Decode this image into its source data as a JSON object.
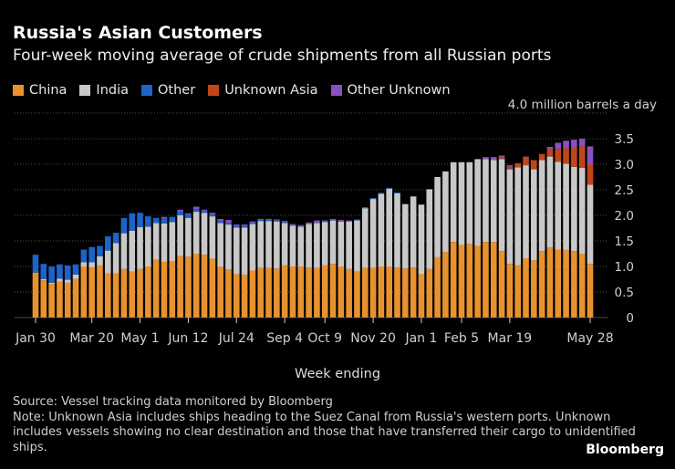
{
  "title": "Russia's Asian Customers",
  "subtitle": "Four-week moving average of crude shipments from all Russian ports",
  "legend": [
    {
      "label": "China",
      "color": "#e8922e"
    },
    {
      "label": "India",
      "color": "#c8c8c8"
    },
    {
      "label": "Other",
      "color": "#1e63c8"
    },
    {
      "label": "Unknown Asia",
      "color": "#c0461a"
    },
    {
      "label": "Other Unknown",
      "color": "#8b4fc2"
    }
  ],
  "source": "Source: Vessel tracking data monitored by Bloomberg",
  "note": "Note: Unknown Asia includes ships heading to the Suez Canal from Russia's western ports. Unknown includes vessels showing no clear destination and those that have transferred their cargo to unidentified ships.",
  "brand": "Bloomberg",
  "chart_data": {
    "type": "bar",
    "stacked": true,
    "title": "Russia's Asian Customers",
    "unit_label": "4.0 million barrels a day",
    "xlabel": "Week ending",
    "ylabel": "",
    "ylim": [
      0,
      4.0
    ],
    "yticks": [
      "0",
      "0.5",
      "1.0",
      "1.5",
      "2.0",
      "2.5",
      "3.0",
      "3.5"
    ],
    "ytick_values": [
      0,
      0.5,
      1.0,
      1.5,
      2.0,
      2.5,
      3.0,
      3.5
    ],
    "xtick_labels": [
      "Jan 30",
      "Mar 20",
      "May 1",
      "Jun 12",
      "Jul 24",
      "Sep 4",
      "Oct 9",
      "Nov 20",
      "Jan 1",
      "Feb 5",
      "Mar 19",
      "May 28"
    ],
    "xtick_indices": [
      0,
      7,
      13,
      19,
      25,
      31,
      36,
      42,
      48,
      53,
      59,
      69
    ],
    "colors": [
      "#e8922e",
      "#c8c8c8",
      "#1e63c8",
      "#c0461a",
      "#8b4fc2"
    ],
    "series": [
      {
        "name": "China",
        "values": [
          0.88,
          0.73,
          0.66,
          0.7,
          0.68,
          0.76,
          1.0,
          0.98,
          1.02,
          0.86,
          0.86,
          0.95,
          0.9,
          0.95,
          1.0,
          1.13,
          1.09,
          1.1,
          1.2,
          1.19,
          1.25,
          1.23,
          1.15,
          1.0,
          0.94,
          0.85,
          0.84,
          0.92,
          0.97,
          0.97,
          0.96,
          1.02,
          1.0,
          1.0,
          0.98,
          0.97,
          1.02,
          1.05,
          1.0,
          0.95,
          0.9,
          0.97,
          0.97,
          1.0,
          1.0,
          0.98,
          0.96,
          0.98,
          0.85,
          0.95,
          1.18,
          1.28,
          1.48,
          1.42,
          1.44,
          1.4,
          1.48,
          1.48,
          1.3,
          1.05,
          1.02,
          1.16,
          1.12,
          1.3,
          1.37,
          1.33,
          1.33,
          1.3,
          1.25,
          1.05
        ]
      },
      {
        "name": "India",
        "values": [
          0,
          0.02,
          0.02,
          0.06,
          0.06,
          0.08,
          0.08,
          0.1,
          0.18,
          0.45,
          0.6,
          0.7,
          0.8,
          0.82,
          0.78,
          0.72,
          0.75,
          0.77,
          0.8,
          0.76,
          0.82,
          0.82,
          0.83,
          0.85,
          0.88,
          0.91,
          0.92,
          0.91,
          0.92,
          0.92,
          0.92,
          0.83,
          0.8,
          0.78,
          0.85,
          0.88,
          0.85,
          0.85,
          0.88,
          0.93,
          1.0,
          1.17,
          1.35,
          1.42,
          1.52,
          1.45,
          1.26,
          1.39,
          1.36,
          1.56,
          1.57,
          1.58,
          1.56,
          1.62,
          1.6,
          1.7,
          1.62,
          1.6,
          1.8,
          1.85,
          1.92,
          1.82,
          1.78,
          1.78,
          1.78,
          1.72,
          1.68,
          1.65,
          1.68,
          1.55
        ]
      },
      {
        "name": "Other",
        "values": [
          0.35,
          0.3,
          0.32,
          0.28,
          0.28,
          0.2,
          0.25,
          0.3,
          0.2,
          0.28,
          0.2,
          0.3,
          0.34,
          0.28,
          0.2,
          0.1,
          0.1,
          0.1,
          0.08,
          0.07,
          0.05,
          0.04,
          0.04,
          0.03,
          0.03,
          0.03,
          0.03,
          0.02,
          0.02,
          0.02,
          0.02,
          0.02,
          0.01,
          0.01,
          0.01,
          0.01,
          0.01,
          0.01,
          0.01,
          0,
          0.02,
          0.02,
          0.02,
          0.02,
          0.02,
          0.02,
          0,
          0,
          0,
          0,
          0,
          0,
          0,
          0,
          0,
          0,
          0,
          0,
          0,
          0,
          0,
          0,
          0,
          0,
          0,
          0,
          0,
          0,
          0,
          0
        ]
      },
      {
        "name": "Unknown Asia",
        "values": [
          0,
          0,
          0,
          0,
          0,
          0,
          0,
          0,
          0,
          0,
          0,
          0,
          0,
          0,
          0,
          0,
          0,
          0,
          0,
          0,
          0,
          0,
          0,
          0,
          0,
          0,
          0,
          0,
          0,
          0,
          0,
          0,
          0,
          0,
          0,
          0,
          0,
          0,
          0,
          0,
          0,
          0,
          0,
          0,
          0,
          0,
          0,
          0,
          0,
          0,
          0,
          0,
          0,
          0,
          0,
          0,
          0,
          0,
          0.04,
          0.05,
          0.08,
          0.15,
          0.18,
          0.12,
          0.14,
          0.25,
          0.3,
          0.38,
          0.42,
          0.4
        ]
      },
      {
        "name": "Other Unknown",
        "values": [
          0,
          0,
          0,
          0,
          0,
          0,
          0,
          0,
          0,
          0,
          0,
          0,
          0,
          0,
          0,
          0,
          0.03,
          0,
          0.03,
          0.02,
          0.05,
          0.02,
          0.03,
          0.05,
          0.06,
          0.03,
          0.03,
          0.03,
          0.02,
          0.02,
          0.02,
          0.02,
          0.02,
          0.02,
          0.02,
          0.04,
          0.02,
          0.02,
          0.02,
          0.02,
          0,
          0,
          0,
          0,
          0,
          0,
          0,
          0,
          0,
          0,
          0,
          0,
          0,
          0,
          0,
          0,
          0.04,
          0.06,
          0.03,
          0.03,
          0,
          0.02,
          0,
          0,
          0.05,
          0.12,
          0.15,
          0.15,
          0.15,
          0.35
        ]
      }
    ]
  }
}
